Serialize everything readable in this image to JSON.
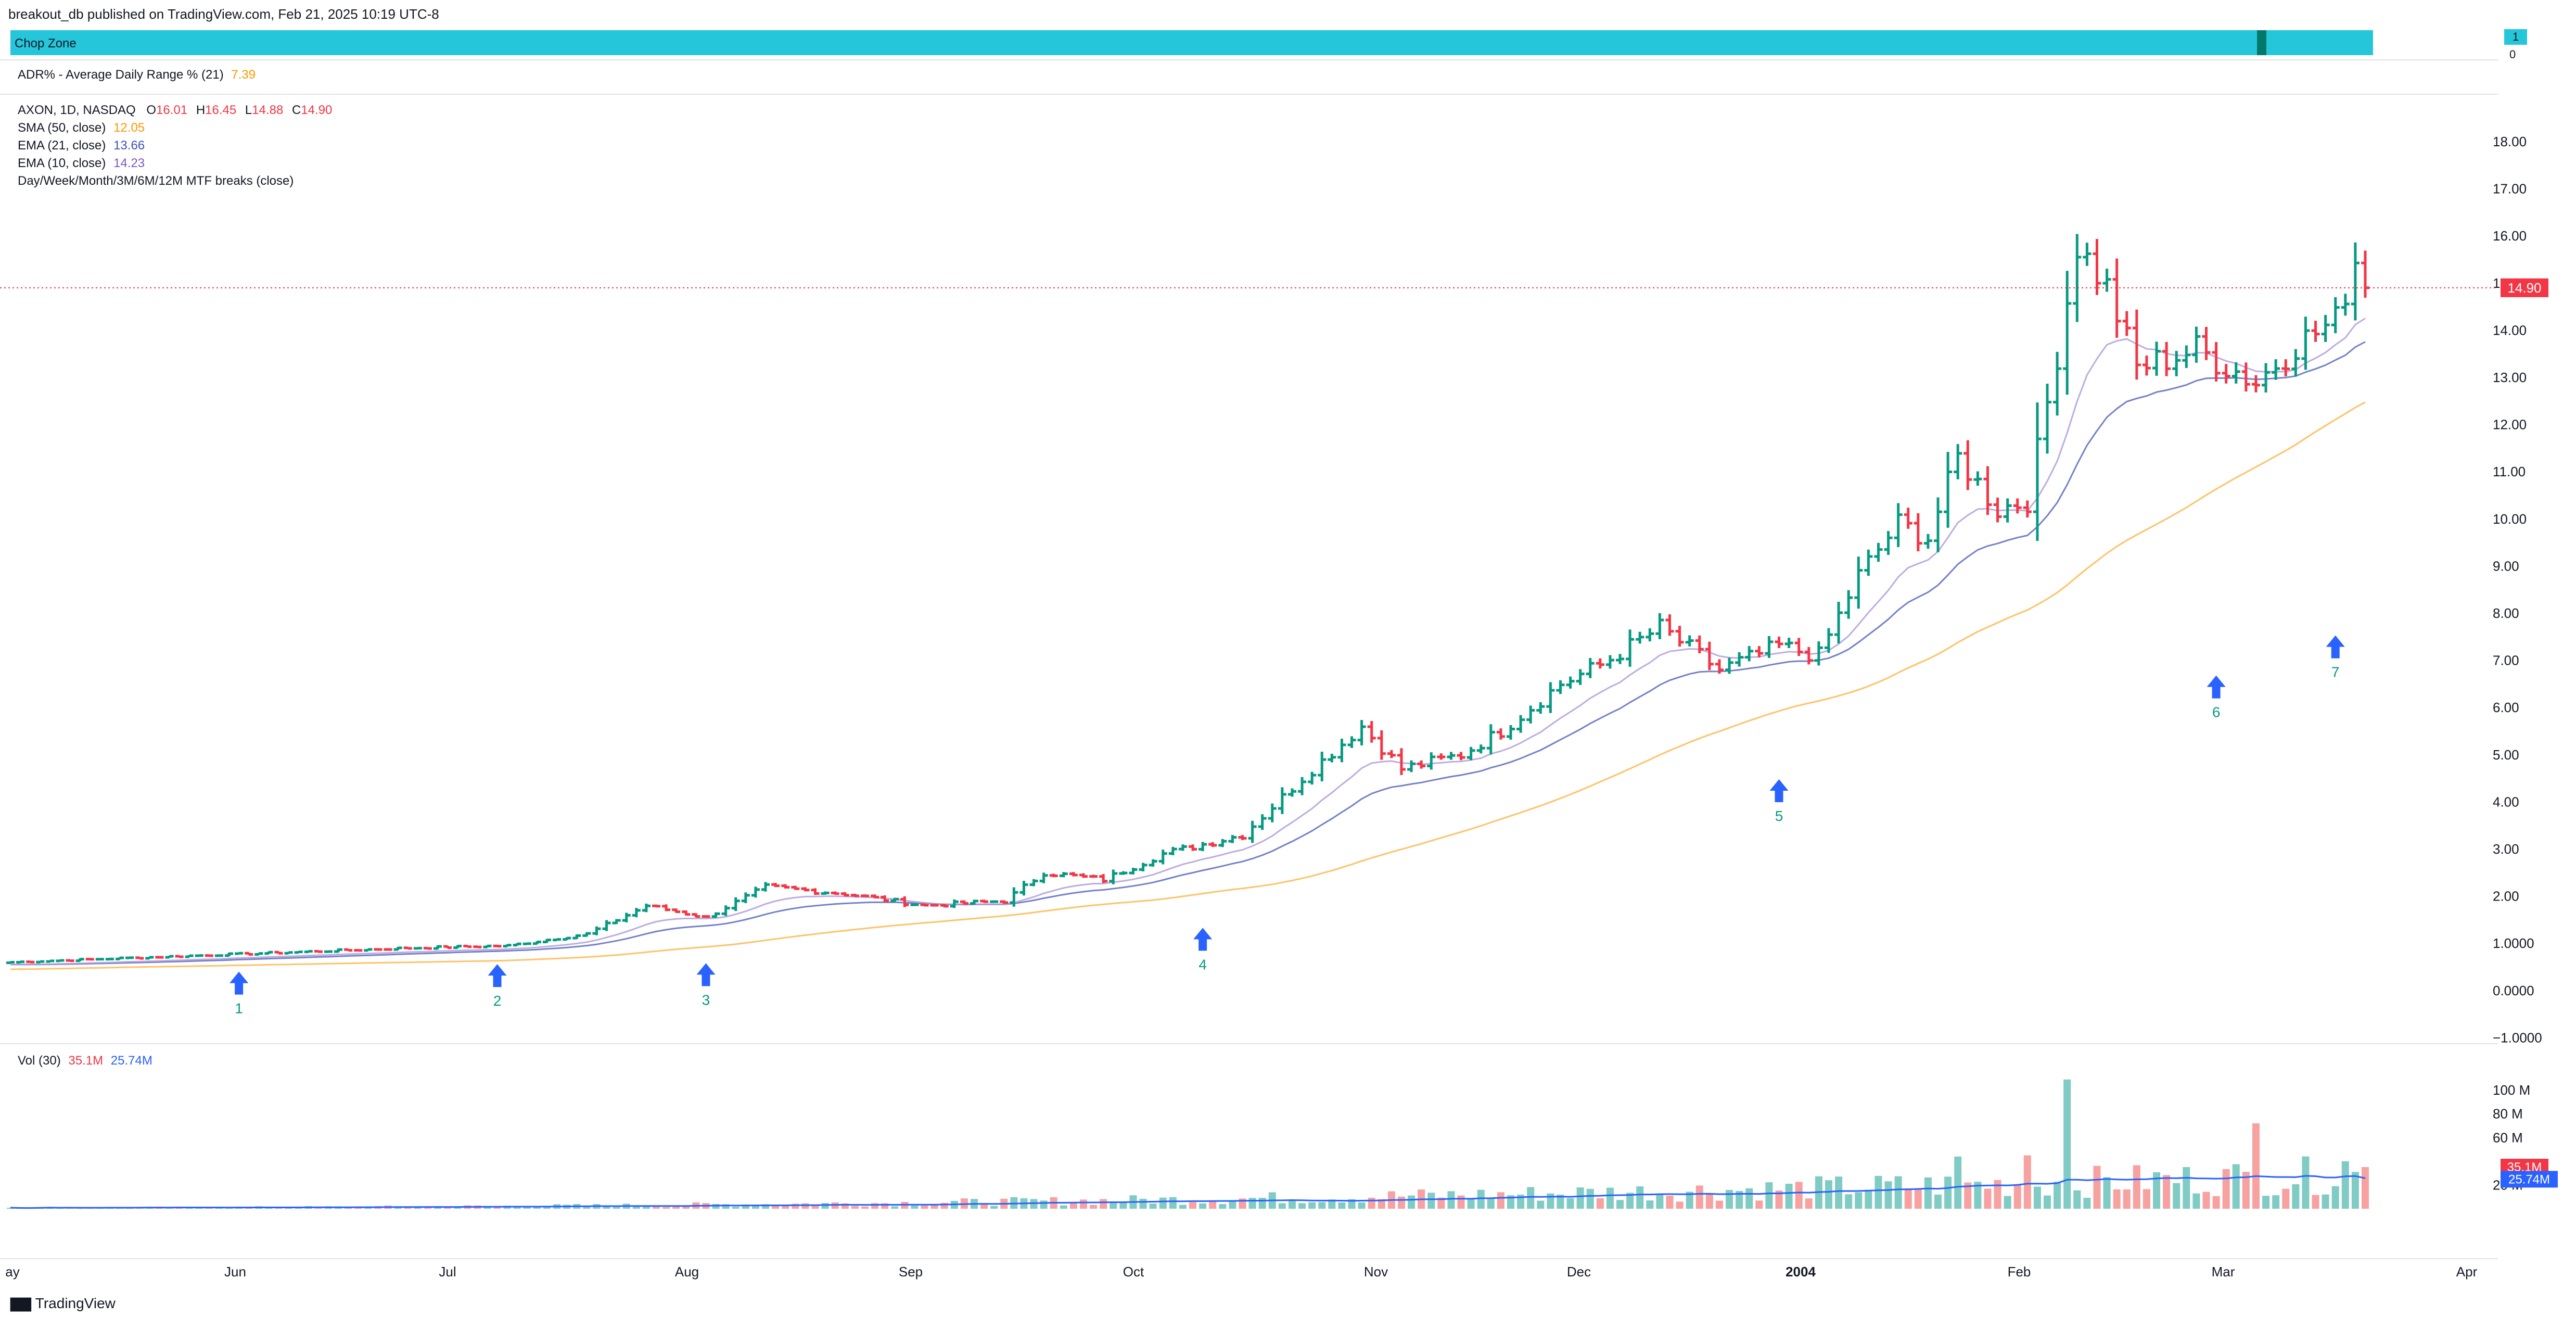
{
  "header": {
    "publish_line": "breakout_db published on TradingView.com, Feb 21, 2025 10:19 UTC-8"
  },
  "chop_zone": {
    "label": "Chop Zone",
    "badge": "1",
    "zero": "0"
  },
  "adr": {
    "label": "ADR% - Average Daily Range % (21)",
    "value": "7.39",
    "color": "#ff9800"
  },
  "legend": {
    "symbol": "AXON, 1D, NASDAQ",
    "o_label": "O",
    "o": "16.01",
    "h_label": "H",
    "h": "16.45",
    "l_label": "L",
    "l": "14.88",
    "c_label": "C",
    "c": "14.90",
    "sma_label": "SMA (50, close)",
    "sma_value": "12.05",
    "ema21_label": "EMA (21, close)",
    "ema21_value": "13.66",
    "ema10_label": "EMA (10, close)",
    "ema10_value": "14.23",
    "mtf_label": "Day/Week/Month/3M/6M/12M MTF breaks (close)"
  },
  "volume": {
    "label": "Vol (30)",
    "value": "35.1M",
    "ma_value": "25.74M"
  },
  "footer": {
    "brand": "TradingView"
  },
  "colors": {
    "up": "#089981",
    "down": "#f23645",
    "sma": "#ffb74d",
    "ema21": "#5c6bc0",
    "ema10": "#b39ddb",
    "vol_up": "#80cbc4",
    "vol_down": "#f7a1a1",
    "vol_ma": "#2962ff",
    "arrow": "#2962ff",
    "arrow_label": "#089981"
  },
  "chart_data": {
    "type": "ohlc",
    "symbol": "AXON",
    "x_labels": [
      "ay",
      "Jun",
      "Jul",
      "Aug",
      "Sep",
      "Oct",
      "Nov",
      "Dec",
      "2004",
      "Feb",
      "Mar",
      "Apr"
    ],
    "y_ticks": [
      "18.00",
      "17.00",
      "16.00",
      "15.00",
      "14.00",
      "13.00",
      "12.00",
      "11.00",
      "10.00",
      "9.00",
      "8.00",
      "7.00",
      "6.00",
      "5.00",
      "4.00",
      "3.00",
      "2.00",
      "1.0000",
      "0.0000",
      "−1.0000"
    ],
    "ylim": [
      -1,
      18.3
    ],
    "last_price": "14.90",
    "breakout_markers": [
      {
        "label": "1",
        "price": 0.62
      },
      {
        "label": "2",
        "price": 0.78
      },
      {
        "label": "3",
        "price": 0.8
      },
      {
        "label": "4",
        "price": 1.55
      },
      {
        "label": "5",
        "price": 4.7
      },
      {
        "label": "6",
        "price": 6.9
      },
      {
        "label": "7",
        "price": 7.75
      }
    ],
    "anchors": [
      {
        "t": 0,
        "p": 0.6
      },
      {
        "t": 20,
        "p": 0.75
      },
      {
        "t": 40,
        "p": 0.9
      },
      {
        "t": 50,
        "p": 0.95
      },
      {
        "t": 58,
        "p": 1.2
      },
      {
        "t": 64,
        "p": 1.8
      },
      {
        "t": 70,
        "p": 1.55
      },
      {
        "t": 76,
        "p": 2.2
      },
      {
        "t": 84,
        "p": 2.05
      },
      {
        "t": 92,
        "p": 1.8
      },
      {
        "t": 100,
        "p": 1.9
      },
      {
        "t": 104,
        "p": 2.5
      },
      {
        "t": 110,
        "p": 2.35
      },
      {
        "t": 116,
        "p": 2.9
      },
      {
        "t": 124,
        "p": 3.3
      },
      {
        "t": 130,
        "p": 4.5
      },
      {
        "t": 136,
        "p": 5.6
      },
      {
        "t": 140,
        "p": 4.7
      },
      {
        "t": 146,
        "p": 5.0
      },
      {
        "t": 150,
        "p": 5.5
      },
      {
        "t": 156,
        "p": 6.5
      },
      {
        "t": 160,
        "p": 6.9
      },
      {
        "t": 166,
        "p": 7.7
      },
      {
        "t": 172,
        "p": 6.8
      },
      {
        "t": 178,
        "p": 7.3
      },
      {
        "t": 182,
        "p": 7.1
      },
      {
        "t": 186,
        "p": 8.8
      },
      {
        "t": 190,
        "p": 9.9
      },
      {
        "t": 193,
        "p": 9.6
      },
      {
        "t": 196,
        "p": 11.3
      },
      {
        "t": 200,
        "p": 10.2
      },
      {
        "t": 203,
        "p": 10.4
      },
      {
        "t": 206,
        "p": 13.5
      },
      {
        "t": 208,
        "p": 15.8
      },
      {
        "t": 211,
        "p": 14.9
      },
      {
        "t": 214,
        "p": 13.2
      },
      {
        "t": 220,
        "p": 13.6
      },
      {
        "t": 226,
        "p": 12.9
      },
      {
        "t": 230,
        "p": 13.7
      },
      {
        "t": 234,
        "p": 14.2
      },
      {
        "t": 236,
        "p": 15.5
      },
      {
        "t": 237,
        "p": 14.9
      }
    ],
    "volume_spikes_m": [
      {
        "t": 207,
        "v": 109
      },
      {
        "t": 196,
        "v": 44
      },
      {
        "t": 203,
        "v": 45
      },
      {
        "t": 226,
        "v": 72
      },
      {
        "t": 235,
        "v": 40
      },
      {
        "t": 237,
        "v": 35.1
      }
    ],
    "volume_ma_last_m": 25.74,
    "volume_ylim": [
      0,
      115
    ],
    "volume_ticks": [
      "100 M",
      "80 M",
      "60 M",
      "20 M"
    ]
  }
}
